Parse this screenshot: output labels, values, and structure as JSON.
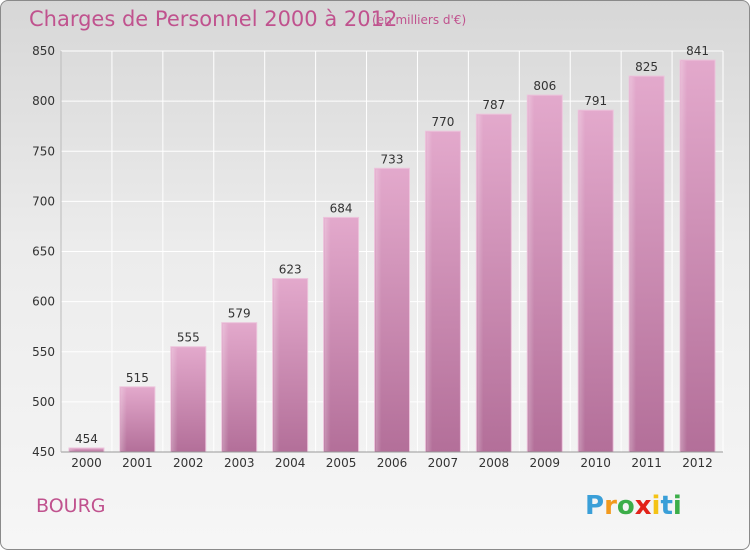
{
  "title": "Charges de Personnel 2000 à 2012",
  "subtitle": "(en milliers d'€)",
  "commune": "BOURG",
  "logo": {
    "letters": [
      "P",
      "r",
      "o",
      "x",
      "i",
      "t",
      "i"
    ],
    "colors": [
      "#3a9fd8",
      "#f29a1e",
      "#3cae49",
      "#e2231a",
      "#f4c316",
      "#3a9fd8",
      "#3cae49"
    ]
  },
  "colors": {
    "bar": "#d9a0c3",
    "bar_dark": "#b86b9a",
    "text": "#c0528e",
    "grid": "#ffffff"
  },
  "chart_data": {
    "type": "bar",
    "categories": [
      "2000",
      "2001",
      "2002",
      "2003",
      "2004",
      "2005",
      "2006",
      "2007",
      "2008",
      "2009",
      "2010",
      "2011",
      "2012"
    ],
    "values": [
      454,
      515,
      555,
      579,
      623,
      684,
      733,
      770,
      787,
      806,
      791,
      825,
      841
    ],
    "ylim": [
      450,
      850
    ],
    "yticks": [
      450,
      500,
      550,
      600,
      650,
      700,
      750,
      800,
      850
    ],
    "grid": true
  }
}
